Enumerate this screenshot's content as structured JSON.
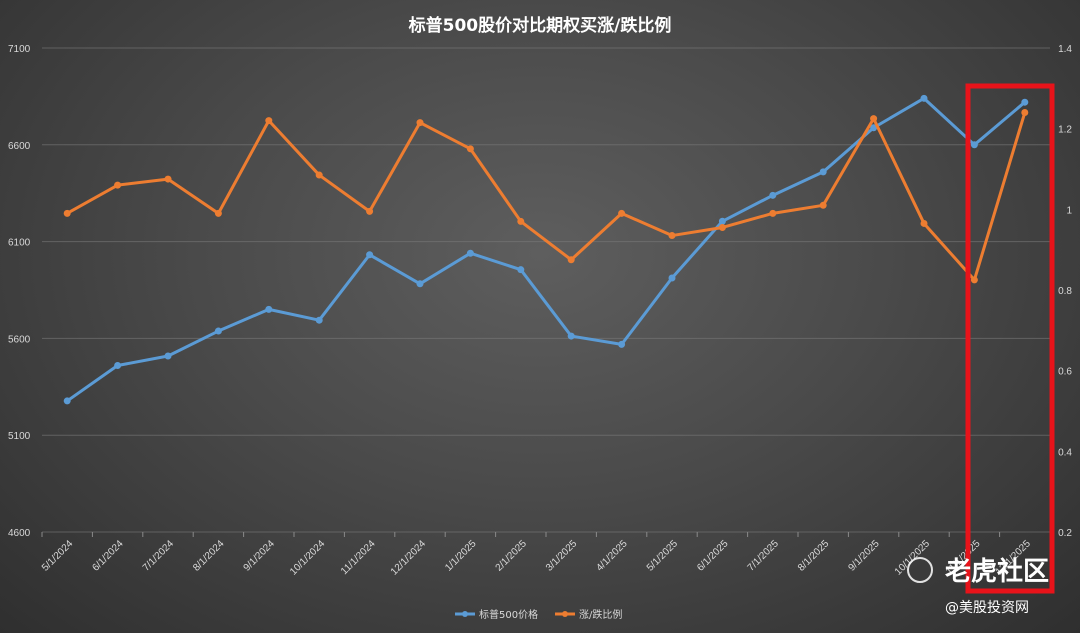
{
  "chart_data": {
    "type": "line",
    "title": "标普500股价对比期权买涨/跌比例",
    "categories": [
      "5/1/2024",
      "6/1/2024",
      "7/1/2024",
      "8/1/2024",
      "9/1/2024",
      "10/1/2024",
      "11/1/2024",
      "12/1/2024",
      "1/1/2025",
      "2/1/2025",
      "3/1/2025",
      "4/1/2025",
      "5/1/2025",
      "6/1/2025",
      "7/1/2025",
      "8/1/2025",
      "9/1/2025",
      "10/1/2025",
      "11/1/2025",
      "12/1/2025"
    ],
    "y_left": {
      "range": [
        4600,
        7100
      ],
      "ticks": [
        "7100",
        "6600",
        "6100",
        "5600",
        "5100",
        "4600"
      ]
    },
    "y_right": {
      "range": [
        0.2,
        1.4
      ],
      "ticks": [
        "1.4",
        "1.2",
        "1",
        "0.8",
        "0.6",
        "0.4",
        "0.2"
      ]
    },
    "series": [
      {
        "name": "标普500价格",
        "axis": "left",
        "color": "#5b9bd5",
        "values": [
          5277,
          5460,
          5509,
          5638,
          5750,
          5694,
          6032,
          5882,
          6040,
          5955,
          5612,
          5569,
          5912,
          6205,
          6339,
          6460,
          6688,
          6840,
          6600,
          6820
        ]
      },
      {
        "name": "涨/跌比例",
        "axis": "right",
        "color": "#ed7d31",
        "values": [
          0.99,
          1.06,
          1.075,
          0.99,
          1.22,
          1.085,
          0.995,
          1.215,
          1.15,
          0.97,
          0.875,
          0.99,
          0.935,
          0.955,
          0.99,
          1.01,
          1.225,
          0.965,
          0.825,
          1.24
        ]
      }
    ],
    "grid": true,
    "legend": "bottom"
  },
  "highlight_color": "#e8131a",
  "watermark": {
    "brand": "老虎社区",
    "handle": "@美股投资网"
  }
}
